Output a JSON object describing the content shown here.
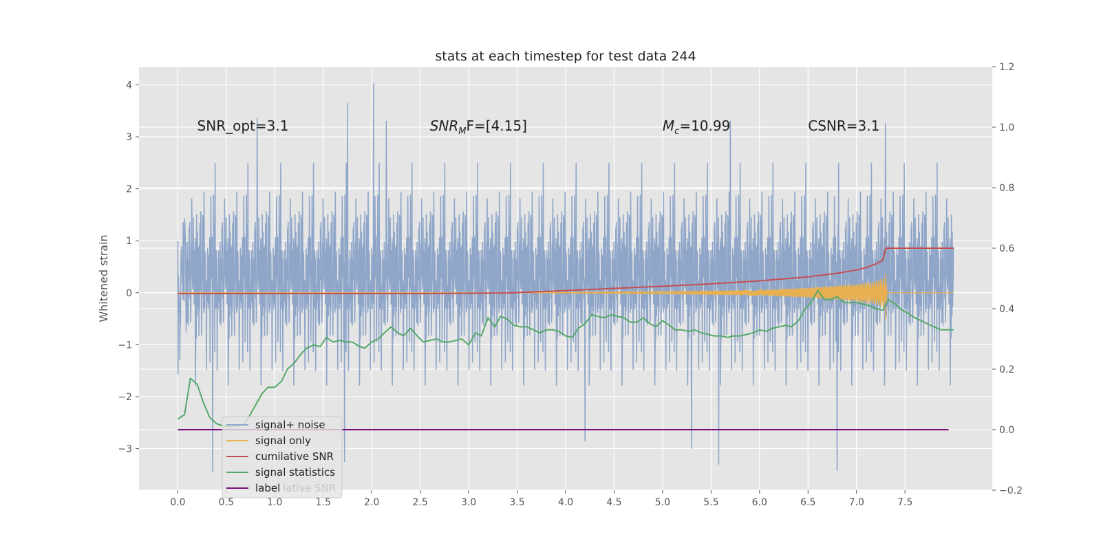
{
  "chart_data": {
    "type": "line",
    "title": "stats at each timestep for test data 244",
    "ylabel": "Whitened strain",
    "xlabel": "",
    "xlim": [
      -0.4,
      8.4
    ],
    "ylim": [
      -3.8,
      4.35
    ],
    "y2lim": [
      -0.2,
      1.2
    ],
    "x_ticks": [
      "0.0",
      "0.5",
      "1.0",
      "1.5",
      "2.0",
      "2.5",
      "3.0",
      "3.5",
      "4.0",
      "4.5",
      "5.0",
      "5.5",
      "6.0",
      "6.5",
      "7.0",
      "7.5"
    ],
    "y_ticks": [
      "−3",
      "−2",
      "−1",
      "0",
      "1",
      "2",
      "3",
      "4"
    ],
    "y2_ticks": [
      "−0.2",
      "0.0",
      "0.2",
      "0.4",
      "0.6",
      "0.8",
      "1.0",
      "1.2"
    ],
    "grid": true,
    "legend_position": "bottom-left",
    "annotations": [
      {
        "x": 0.2,
        "y": 3.2,
        "text": "SNR_opt=3.1"
      },
      {
        "x": 2.6,
        "y": 3.2,
        "text": "SNR_MF=[4.15]",
        "main": "SNR",
        "sub": "M",
        "rest": "F=[4.15]"
      },
      {
        "x": 5.0,
        "y": 3.2,
        "text": "M_c=10.99",
        "main": "M",
        "sub": "c",
        "rest": "=10.99"
      },
      {
        "x": 6.5,
        "y": 3.2,
        "text": "CSNR=3.1"
      }
    ],
    "series": [
      {
        "name": "signal+ noise",
        "label": "signal+ noise",
        "axis": "left",
        "color": "#8fa6c9",
        "noise_like": true,
        "x_range": [
          0.0,
          8.0
        ],
        "approx_envelope": [
          -3.45,
          4.02
        ],
        "peaks": [
          {
            "x": 0.82,
            "y": 3.35
          },
          {
            "x": 1.75,
            "y": 3.65
          },
          {
            "x": 2.02,
            "y": 4.02
          },
          {
            "x": 2.15,
            "y": 3.3
          },
          {
            "x": 5.7,
            "y": 3.3
          },
          {
            "x": 7.3,
            "y": 3.25
          },
          {
            "x": 0.36,
            "y": -3.45
          },
          {
            "x": 1.72,
            "y": -3.25
          },
          {
            "x": 5.58,
            "y": -3.3
          },
          {
            "x": 6.8,
            "y": -3.42
          },
          {
            "x": 5.3,
            "y": -3.0
          },
          {
            "x": 4.2,
            "y": -2.85
          }
        ]
      },
      {
        "name": "signal only",
        "label": "signal only",
        "axis": "left",
        "color": "#e8b050",
        "envelope": [
          {
            "x": 0.0,
            "a": 0.0
          },
          {
            "x": 3.5,
            "a": 0.0
          },
          {
            "x": 5.0,
            "a": 0.02
          },
          {
            "x": 6.0,
            "a": 0.05
          },
          {
            "x": 6.5,
            "a": 0.09
          },
          {
            "x": 7.0,
            "a": 0.16
          },
          {
            "x": 7.2,
            "a": 0.22
          },
          {
            "x": 7.3,
            "a": 0.3
          },
          {
            "x": 7.32,
            "a": 0.0
          },
          {
            "x": 8.0,
            "a": 0.0
          }
        ],
        "spikes": [
          {
            "x": 7.3,
            "y": 0.38
          },
          {
            "x": 7.3,
            "y": -0.52
          }
        ]
      },
      {
        "name": "cumilative SNR",
        "label": "cumilative SNR",
        "axis": "right",
        "color": "#c44e52",
        "x": [
          0.0,
          1.0,
          2.0,
          2.5,
          3.0,
          3.4,
          4.0,
          4.5,
          5.0,
          5.5,
          6.0,
          6.5,
          6.8,
          7.0,
          7.1,
          7.2,
          7.27,
          7.3,
          8.0
        ],
        "y": [
          0.45,
          0.45,
          0.45,
          0.45,
          0.451,
          0.452,
          0.46,
          0.467,
          0.474,
          0.482,
          0.492,
          0.505,
          0.517,
          0.528,
          0.536,
          0.548,
          0.56,
          0.6,
          0.6
        ]
      },
      {
        "name": "signal statistics",
        "label": "signal statistics",
        "axis": "right",
        "color": "#55a868",
        "x": [
          0.0,
          0.07,
          0.13,
          0.2,
          0.27,
          0.33,
          0.4,
          0.47,
          0.53,
          0.6,
          0.67,
          0.73,
          0.8,
          0.87,
          0.93,
          1.0,
          1.07,
          1.13,
          1.2,
          1.27,
          1.33,
          1.4,
          1.47,
          1.53,
          1.6,
          1.67,
          1.73,
          1.8,
          1.87,
          1.93,
          2.0,
          2.07,
          2.13,
          2.2,
          2.27,
          2.33,
          2.4,
          2.47,
          2.53,
          2.6,
          2.67,
          2.73,
          2.8,
          2.87,
          2.93,
          3.0,
          3.07,
          3.13,
          3.2,
          3.27,
          3.33,
          3.4,
          3.47,
          3.53,
          3.6,
          3.67,
          3.73,
          3.8,
          3.87,
          3.93,
          4.0,
          4.07,
          4.13,
          4.2,
          4.27,
          4.33,
          4.4,
          4.47,
          4.53,
          4.6,
          4.67,
          4.73,
          4.8,
          4.87,
          4.93,
          5.0,
          5.07,
          5.13,
          5.2,
          5.27,
          5.33,
          5.4,
          5.47,
          5.53,
          5.6,
          5.67,
          5.73,
          5.8,
          5.87,
          5.93,
          6.0,
          6.07,
          6.13,
          6.2,
          6.27,
          6.33,
          6.4,
          6.47,
          6.53,
          6.6,
          6.67,
          6.73,
          6.8,
          6.87,
          6.93,
          7.0,
          7.07,
          7.13,
          7.2,
          7.27,
          7.33,
          7.4,
          7.47,
          7.53,
          7.6,
          7.67,
          7.73,
          7.8,
          7.87,
          7.93,
          8.0
        ],
        "y": [
          0.035,
          0.05,
          0.17,
          0.15,
          0.085,
          0.04,
          0.02,
          0.012,
          0.01,
          0.012,
          0.015,
          0.04,
          0.08,
          0.12,
          0.14,
          0.14,
          0.16,
          0.2,
          0.22,
          0.25,
          0.27,
          0.28,
          0.275,
          0.305,
          0.29,
          0.295,
          0.29,
          0.29,
          0.275,
          0.27,
          0.29,
          0.3,
          0.32,
          0.34,
          0.32,
          0.31,
          0.335,
          0.31,
          0.29,
          0.295,
          0.3,
          0.29,
          0.29,
          0.295,
          0.3,
          0.28,
          0.32,
          0.31,
          0.37,
          0.34,
          0.375,
          0.365,
          0.345,
          0.34,
          0.34,
          0.33,
          0.32,
          0.33,
          0.33,
          0.325,
          0.31,
          0.305,
          0.335,
          0.35,
          0.38,
          0.375,
          0.37,
          0.38,
          0.375,
          0.37,
          0.355,
          0.355,
          0.37,
          0.35,
          0.34,
          0.36,
          0.345,
          0.33,
          0.33,
          0.325,
          0.33,
          0.32,
          0.315,
          0.31,
          0.31,
          0.305,
          0.31,
          0.31,
          0.315,
          0.32,
          0.33,
          0.325,
          0.335,
          0.34,
          0.345,
          0.34,
          0.36,
          0.4,
          0.42,
          0.46,
          0.43,
          0.43,
          0.44,
          0.42,
          0.42,
          0.42,
          0.415,
          0.41,
          0.4,
          0.395,
          0.43,
          0.415,
          0.395,
          0.385,
          0.37,
          0.36,
          0.35,
          0.34,
          0.33,
          0.33,
          0.33
        ]
      },
      {
        "name": "label",
        "label": "label",
        "axis": "right",
        "color": "#7b0f7b",
        "x": [
          0.0,
          7.95
        ],
        "y": [
          0.0,
          0.0
        ]
      }
    ],
    "legend_overlap_text": "lative SNR"
  },
  "colors": {
    "axes_background": "#e5e5e5",
    "grid": "#ffffff",
    "tick_text": "#555555",
    "title_text": "#222222"
  }
}
